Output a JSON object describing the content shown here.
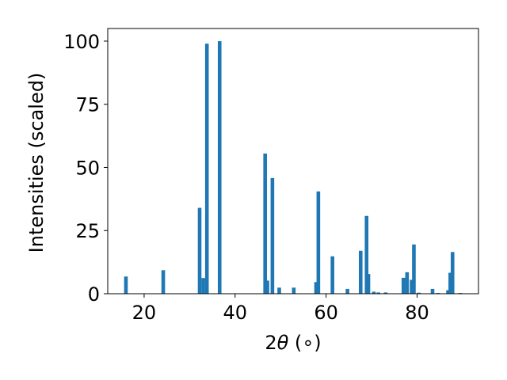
{
  "chart_data": {
    "type": "bar",
    "title": "",
    "xlabel_prefix": "2",
    "xlabel_symbol": "θ",
    "xlabel_unit": " (∘)",
    "ylabel": "Intensities (scaled)",
    "xlim": [
      12,
      93.5
    ],
    "ylim": [
      0,
      105
    ],
    "xticks": [
      20,
      40,
      60,
      80
    ],
    "yticks": [
      0,
      25,
      50,
      75,
      100
    ],
    "grid": false,
    "legend": "none",
    "bar_color": "#1f77b4",
    "bar_width": 0.8,
    "x": [
      16.0,
      24.2,
      32.2,
      33.0,
      33.8,
      36.6,
      46.6,
      47.1,
      48.2,
      49.7,
      52.9,
      57.8,
      58.3,
      61.4,
      64.7,
      67.6,
      68.9,
      69.3,
      70.5,
      71.5,
      73.1,
      77.0,
      77.8,
      78.8,
      79.3,
      80.4,
      83.4,
      84.6,
      86.8,
      87.3,
      87.8,
      89.5
    ],
    "values": [
      6.8,
      9.3,
      34.0,
      6.2,
      99.0,
      100.0,
      55.5,
      5.2,
      45.8,
      2.4,
      2.4,
      4.6,
      40.5,
      14.8,
      1.9,
      17.0,
      30.8,
      7.8,
      0.8,
      0.5,
      0.5,
      6.3,
      8.5,
      5.5,
      19.5,
      0.4,
      1.9,
      0.3,
      1.4,
      8.3,
      16.5,
      0.3
    ]
  }
}
